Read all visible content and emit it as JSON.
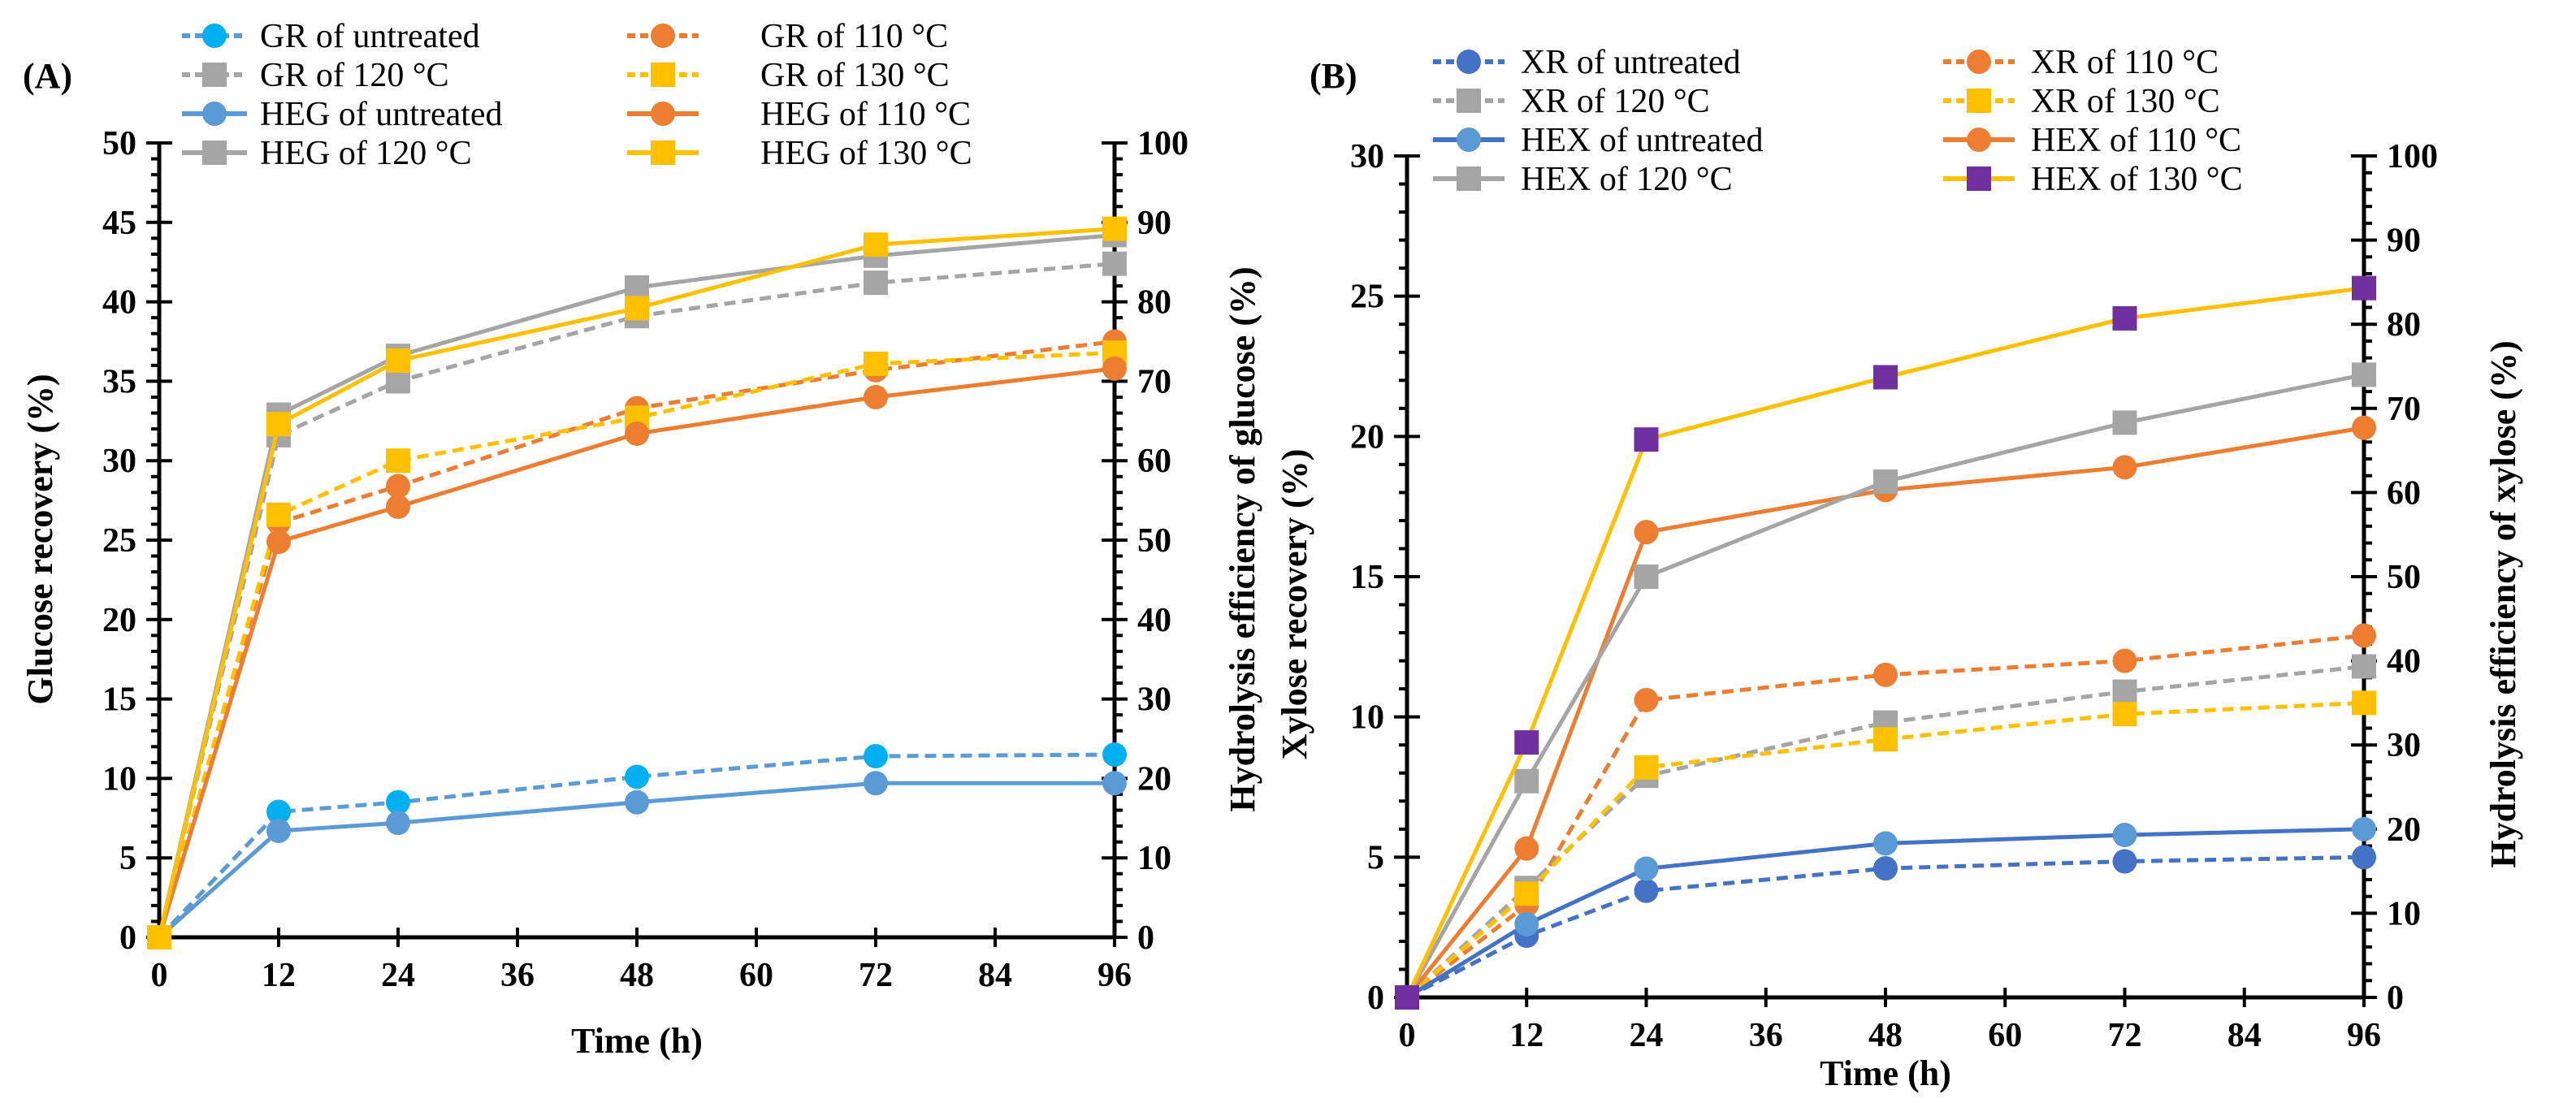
{
  "chart_data": [
    {
      "type": "line",
      "panel_label": "(A)",
      "xlabel": "Time (h)",
      "ylabel": "Glucose recovery (%)",
      "ylabel_right": "Hydrolysis efficiency of glucose (%)",
      "x": [
        0,
        12,
        24,
        48,
        72,
        96
      ],
      "xticks": [
        "0",
        "12",
        "24",
        "36",
        "48",
        "60",
        "72",
        "84",
        "96"
      ],
      "xlim": [
        0,
        96
      ],
      "ylim": [
        0,
        50
      ],
      "ylim_right": [
        0,
        100
      ],
      "yticks": [
        "0",
        "5",
        "10",
        "15",
        "20",
        "25",
        "30",
        "35",
        "40",
        "45",
        "50"
      ],
      "yticks_right": [
        "0",
        "10",
        "20",
        "30",
        "40",
        "50",
        "60",
        "70",
        "80",
        "90",
        "100"
      ],
      "legend_position": "top",
      "series": [
        {
          "name": "GR of untreated",
          "axis": "left",
          "style": "dashed",
          "marker": "circle",
          "line_color": "#5B9BD5",
          "marker_color": "#00B0F0",
          "values": [
            0,
            7.9,
            8.5,
            10.1,
            11.4,
            11.5
          ]
        },
        {
          "name": "GR of 110 °C",
          "axis": "left",
          "style": "dashed",
          "marker": "circle",
          "line_color": "#ED7D31",
          "marker_color": "#ED7D31",
          "values": [
            0,
            26.1,
            28.4,
            33.3,
            35.7,
            37.5
          ]
        },
        {
          "name": "GR of 120 °C",
          "axis": "left",
          "style": "dashed",
          "marker": "square",
          "line_color": "#A5A5A5",
          "marker_color": "#A5A5A5",
          "values": [
            0,
            31.6,
            35.0,
            39.1,
            41.2,
            42.4
          ]
        },
        {
          "name": "GR of 130 °C",
          "axis": "left",
          "style": "dashed",
          "marker": "square",
          "line_color": "#FFC000",
          "marker_color": "#FFC000",
          "values": [
            0,
            26.6,
            30.0,
            32.7,
            36.1,
            36.8
          ]
        },
        {
          "name": "HEG of untreated",
          "axis": "right",
          "style": "solid",
          "marker": "circle",
          "line_color": "#5B9BD5",
          "marker_color": "#5B9BD5",
          "values": [
            0,
            13.4,
            14.4,
            17.0,
            19.4,
            19.4
          ]
        },
        {
          "name": "HEG of 110 °C",
          "axis": "right",
          "style": "solid",
          "marker": "circle",
          "line_color": "#ED7D31",
          "marker_color": "#ED7D31",
          "values": [
            0,
            49.8,
            54.2,
            63.4,
            68.0,
            71.6
          ]
        },
        {
          "name": "HEG of 120 °C",
          "axis": "right",
          "style": "solid",
          "marker": "square",
          "line_color": "#A5A5A5",
          "marker_color": "#A5A5A5",
          "values": [
            0,
            65.8,
            73.2,
            81.8,
            85.8,
            88.4
          ]
        },
        {
          "name": "HEG of 130 °C",
          "axis": "right",
          "style": "solid",
          "marker": "square",
          "line_color": "#FFC000",
          "marker_color": "#FFC000",
          "values": [
            0,
            64.6,
            72.6,
            79.2,
            87.2,
            89.2
          ]
        }
      ]
    },
    {
      "type": "line",
      "panel_label": "(B)",
      "xlabel": "Time (h)",
      "ylabel": "Xylose recovery (%)",
      "ylabel_right": "Hydrolysis efficiency of xylose (%)",
      "x": [
        0,
        12,
        24,
        48,
        72,
        96
      ],
      "xticks": [
        "0",
        "12",
        "24",
        "36",
        "48",
        "60",
        "72",
        "84",
        "96"
      ],
      "xlim": [
        0,
        96
      ],
      "ylim": [
        0,
        30
      ],
      "ylim_right": [
        0,
        100
      ],
      "yticks": [
        "0",
        "5",
        "10",
        "15",
        "20",
        "25",
        "30"
      ],
      "yticks_right": [
        "0",
        "10",
        "20",
        "30",
        "40",
        "50",
        "60",
        "70",
        "80",
        "90",
        "100"
      ],
      "legend_position": "top",
      "series": [
        {
          "name": "XR of untreated",
          "axis": "left",
          "style": "dashed",
          "marker": "circle",
          "line_color": "#4472C4",
          "marker_color": "#4472C4",
          "values": [
            0,
            2.2,
            3.8,
            4.6,
            4.85,
            5.0
          ]
        },
        {
          "name": "XR of 110 °C",
          "axis": "left",
          "style": "dashed",
          "marker": "circle",
          "line_color": "#ED7D31",
          "marker_color": "#ED7D31",
          "values": [
            0,
            3.3,
            10.6,
            11.5,
            12.0,
            12.9
          ]
        },
        {
          "name": "XR of 120 °C",
          "axis": "left",
          "style": "dashed",
          "marker": "square",
          "line_color": "#A5A5A5",
          "marker_color": "#A5A5A5",
          "values": [
            0,
            3.9,
            7.9,
            9.8,
            10.9,
            11.8
          ]
        },
        {
          "name": "XR of 130 °C",
          "axis": "left",
          "style": "dashed",
          "marker": "square",
          "line_color": "#FFC000",
          "marker_color": "#FFC000",
          "values": [
            0,
            3.7,
            8.2,
            9.2,
            10.1,
            10.5
          ]
        },
        {
          "name": "HEX of untreated",
          "axis": "right",
          "style": "solid",
          "marker": "circle",
          "line_color": "#4472C4",
          "marker_color": "#5B9BD5",
          "values": [
            0,
            8.7,
            15.3,
            18.3,
            19.3,
            20.0
          ]
        },
        {
          "name": "HEX of 110 °C",
          "axis": "right",
          "style": "solid",
          "marker": "circle",
          "line_color": "#ED7D31",
          "marker_color": "#ED7D31",
          "values": [
            0,
            17.7,
            55.3,
            60.3,
            63.0,
            67.7
          ]
        },
        {
          "name": "HEX of 120 °C",
          "axis": "right",
          "style": "solid",
          "marker": "square",
          "line_color": "#A5A5A5",
          "marker_color": "#A5A5A5",
          "values": [
            0,
            25.7,
            50.0,
            61.3,
            68.3,
            74.0
          ]
        },
        {
          "name": "HEX of 130 °C",
          "axis": "right",
          "style": "solid",
          "marker": "square",
          "line_color": "#FFC000",
          "marker_color": "#7030A0",
          "values": [
            0,
            30.3,
            66.3,
            73.7,
            80.7,
            84.3
          ]
        }
      ]
    }
  ]
}
